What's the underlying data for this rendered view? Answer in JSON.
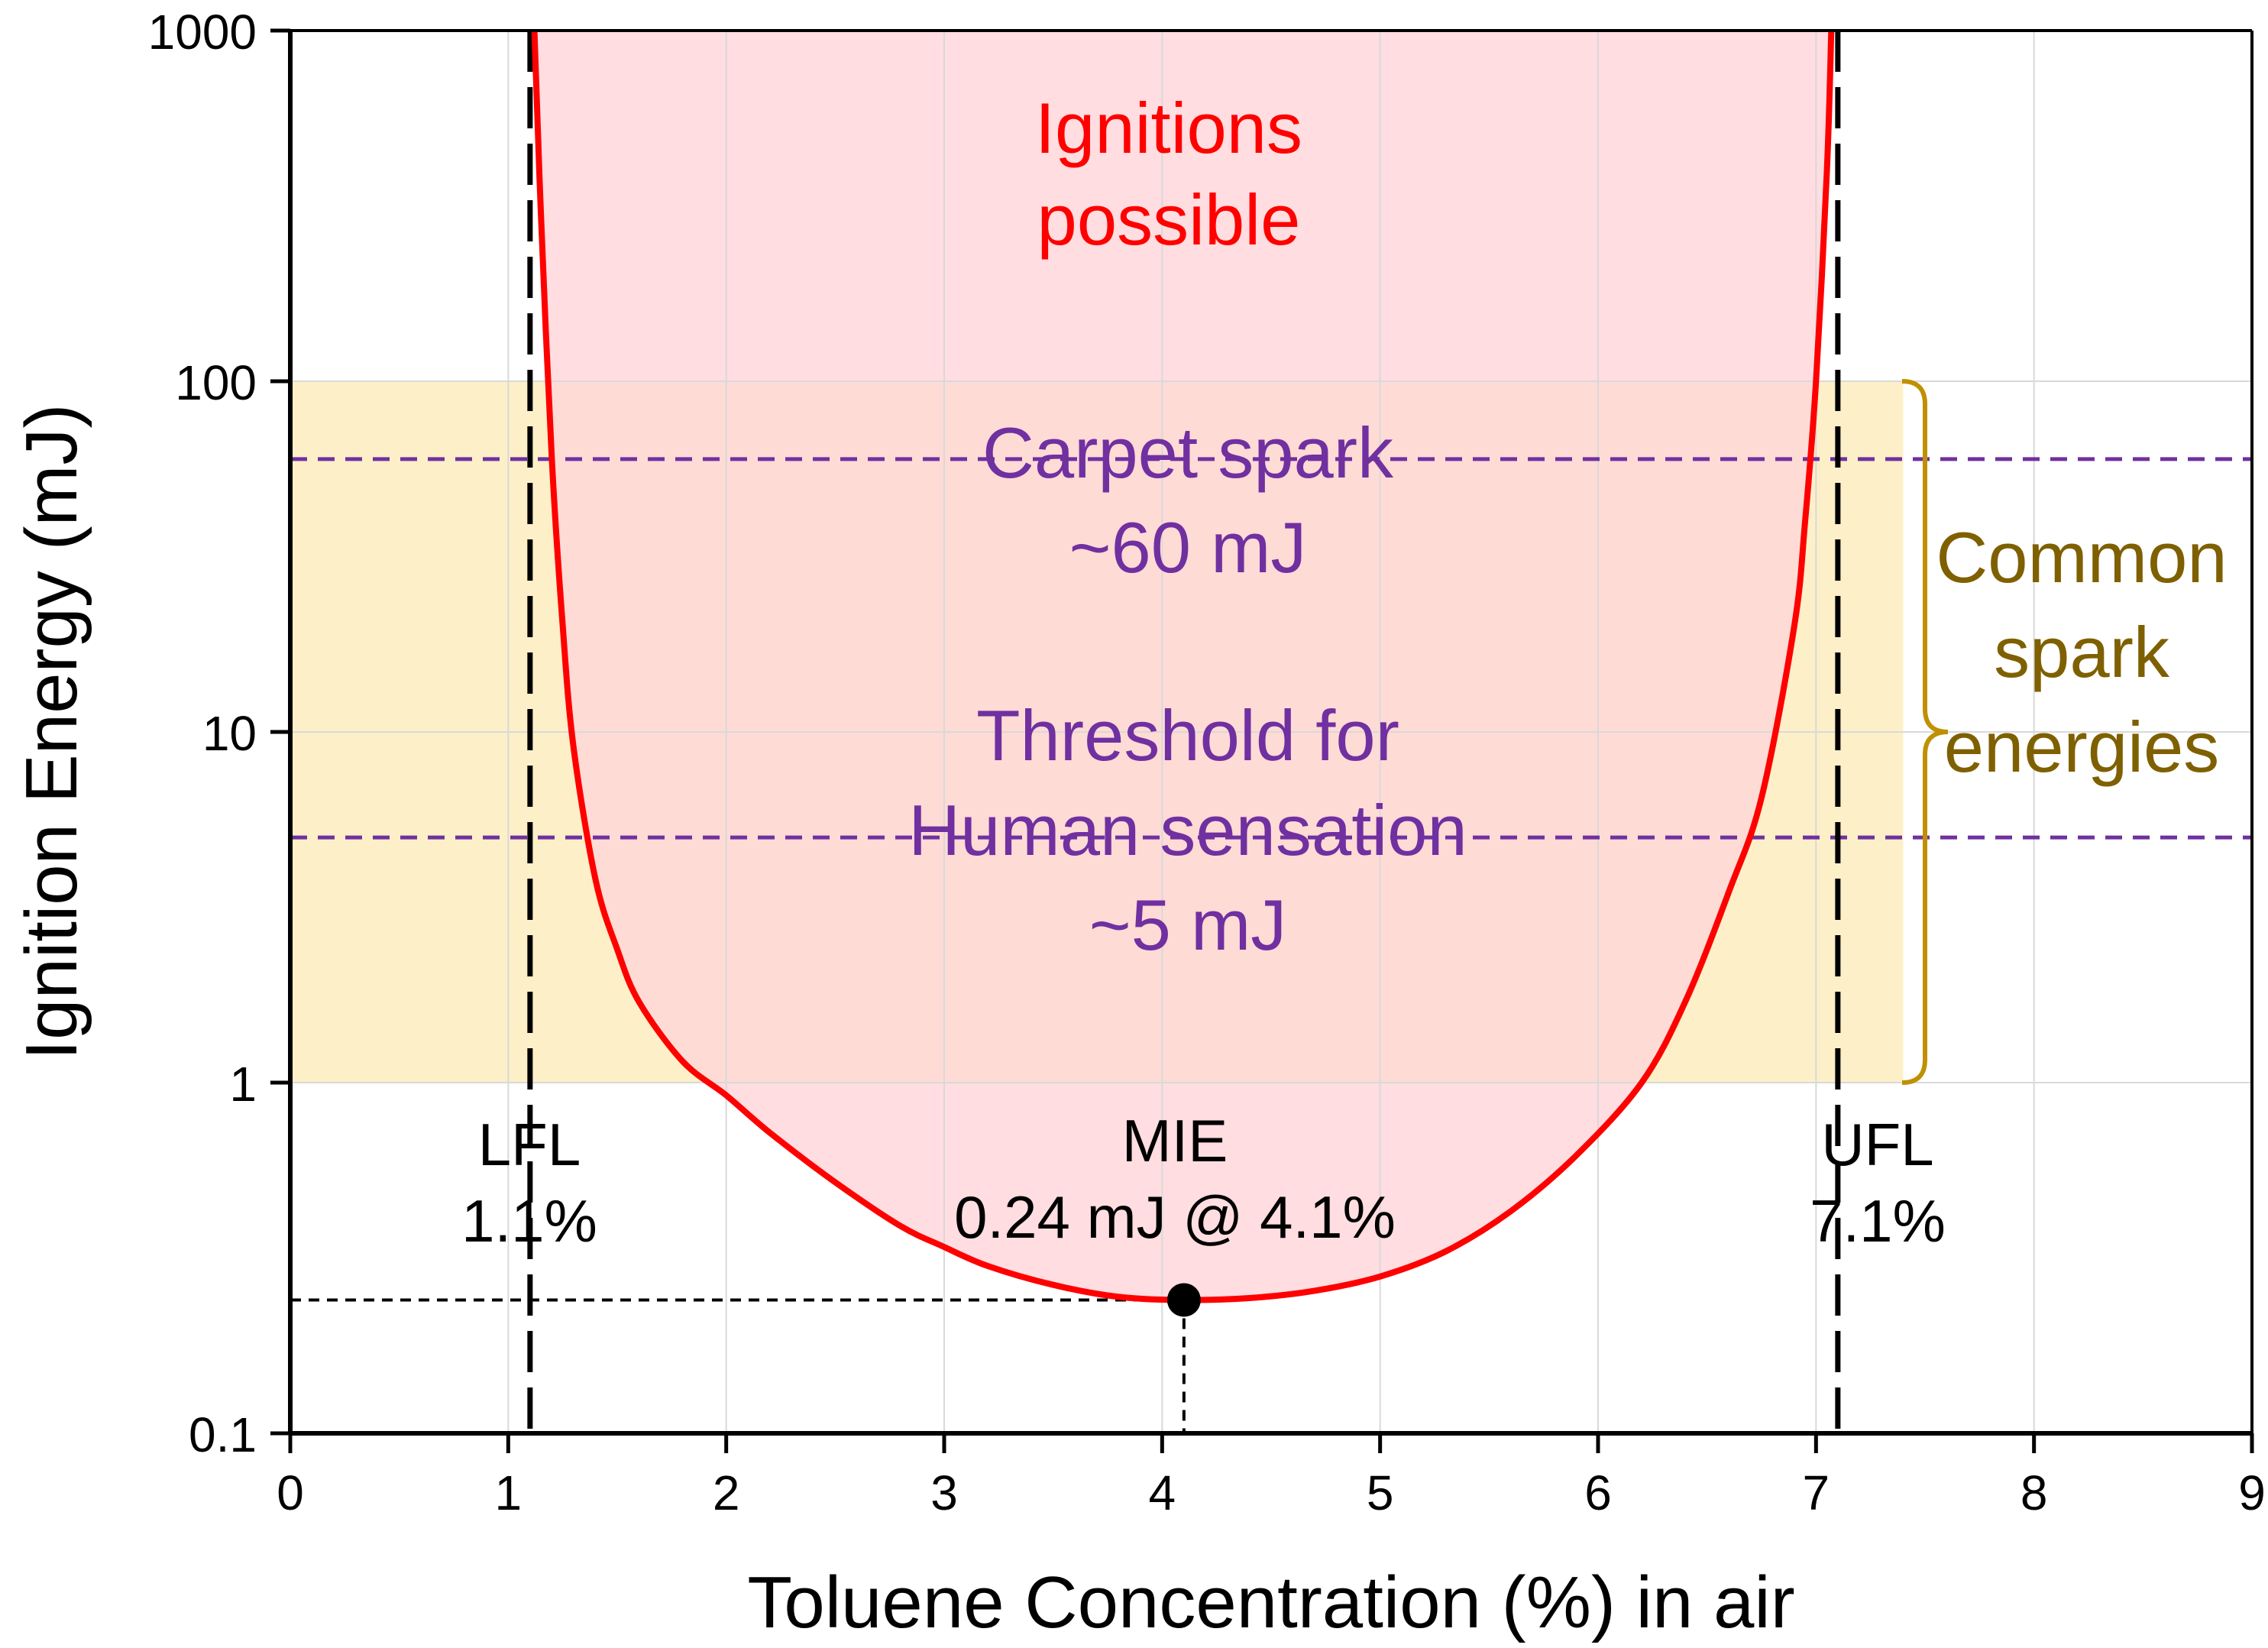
{
  "chart_data": {
    "type": "line",
    "title": "",
    "xlabel": "Toluene Concentration (%) in air",
    "ylabel": "Ignition Energy (mJ)",
    "xlim": [
      0,
      9
    ],
    "ylim": [
      0.1,
      1000
    ],
    "yscale": "log",
    "grid": true,
    "x_ticks": [
      "0",
      "1",
      "2",
      "3",
      "4",
      "5",
      "6",
      "7",
      "8",
      "9"
    ],
    "y_ticks": [
      {
        "value": 0.1,
        "label": "0.1"
      },
      {
        "value": 1,
        "label": "1"
      },
      {
        "value": 10,
        "label": "10"
      },
      {
        "value": 100,
        "label": "100"
      },
      {
        "value": 1000,
        "label": "1000"
      }
    ],
    "series": [
      {
        "color": "#ff0000",
        "x": [
          1.12,
          1.15,
          1.2,
          1.25,
          1.3,
          1.4,
          1.5,
          1.6,
          1.8,
          2.0,
          2.2,
          2.5,
          2.8,
          3.0,
          3.2,
          3.5,
          3.8,
          4.1,
          4.4,
          4.7,
          5.0,
          5.3,
          5.6,
          5.9,
          6.2,
          6.4,
          6.6,
          6.75,
          6.9,
          6.95,
          7.0,
          7.05,
          7.07
        ],
        "y": [
          1000,
          300,
          60,
          20,
          9,
          3.8,
          2.4,
          1.7,
          1.15,
          0.92,
          0.72,
          0.52,
          0.39,
          0.34,
          0.3,
          0.265,
          0.245,
          0.24,
          0.243,
          0.255,
          0.28,
          0.33,
          0.43,
          0.62,
          1.0,
          1.7,
          3.5,
          6.5,
          20,
          40,
          100,
          400,
          1000
        ]
      }
    ],
    "regions": {
      "ignition": {
        "label_lines": [
          "Ignitions",
          "possible"
        ],
        "color": "#ff0000",
        "fill": "#ffd6d9"
      },
      "common_spark": {
        "y_range": [
          1,
          100
        ],
        "label_lines": [
          "Common",
          "spark",
          "energies"
        ],
        "color": "#7f6000",
        "fill": "#fdf0c8"
      }
    },
    "reference_lines": {
      "horizontal": [
        {
          "y": 60,
          "label_lines": [
            "Carpet spark",
            "~60 mJ"
          ],
          "color": "#7030a0"
        },
        {
          "y": 5,
          "label_lines": [
            "Threshold for",
            "Human sensation",
            "~5 mJ"
          ],
          "color": "#7030a0"
        }
      ],
      "vertical": [
        {
          "x": 1.1,
          "label_lines": [
            "LFL",
            "1.1%"
          ]
        },
        {
          "x": 7.1,
          "label_lines": [
            "UFL",
            "7.1%"
          ]
        }
      ]
    },
    "mie_point": {
      "x": 4.1,
      "y": 0.24,
      "label_lines": [
        "MIE",
        "0.24 mJ @ 4.1%"
      ]
    }
  }
}
